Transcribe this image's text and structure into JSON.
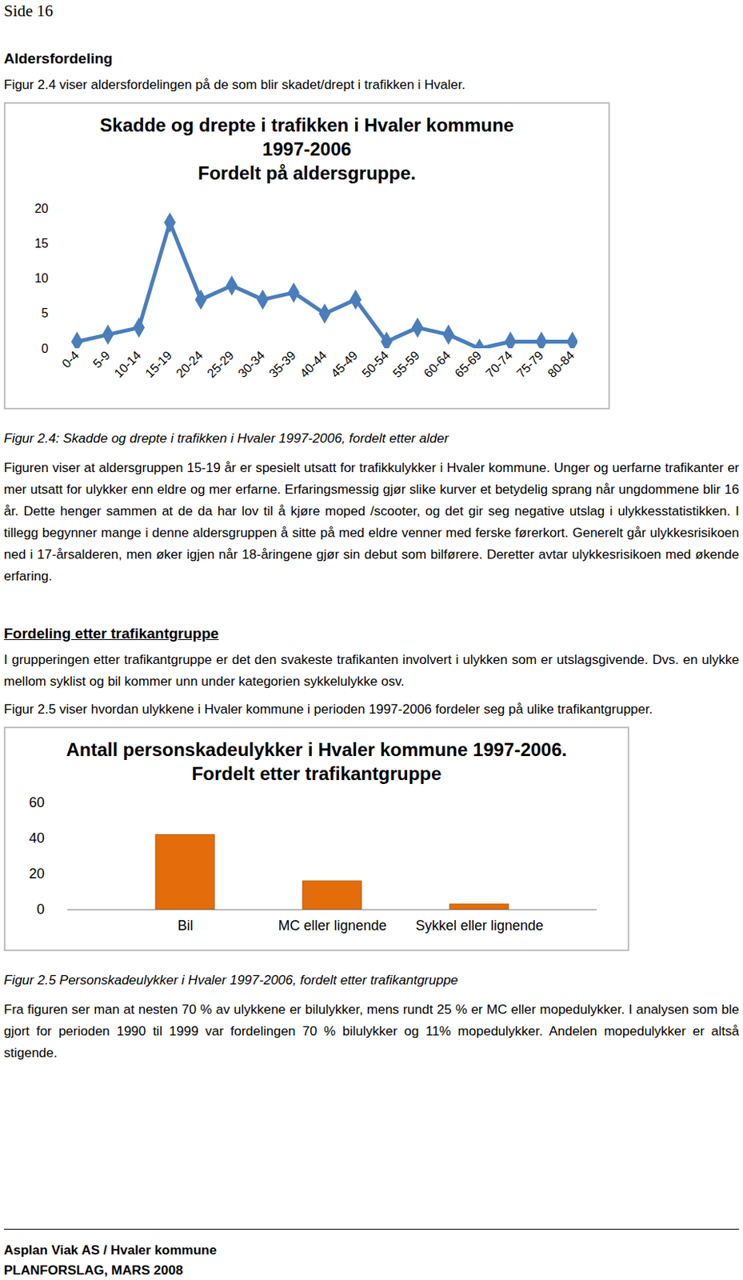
{
  "document": {
    "page_label": "Side 16",
    "sections": [
      {
        "heading": "Aldersfordeling",
        "intro": [
          "Figur 2.4 viser aldersfordelingen på de som blir skadet/drept i trafikken i Hvaler."
        ],
        "caption": "Figur 2.4: Skadde og drepte i trafikken i Hvaler 1997-2006, fordelt etter alder",
        "text": [
          "Figuren viser at aldersgruppen 15-19 år er spesielt utsatt for trafikkulykker i Hvaler kommune. Unger og uerfarne trafikanter er mer utsatt for ulykker enn eldre og mer erfarne. Erfaringsmessig gjør slike kurver et betydelig sprang når ungdommene blir 16 år. Dette henger sammen at de da har lov til å kjøre moped /scooter, og det gir seg negative utslag i ulykkesstatistikken. I tillegg begynner mange i denne aldersgruppen å sitte på med eldre venner med ferske førerkort. Generelt går ulykkesrisikoen ned i 17-årsalderen, men øker igjen når 18-åringene gjør sin debut som bilførere. Deretter avtar ulykkesrisikoen med økende erfaring."
        ]
      },
      {
        "heading": "Fordeling etter trafikantgruppe",
        "intro": [
          "I grupperingen etter trafikantgruppe er det den svakeste trafikanten involvert i ulykken som er utslagsgivende. Dvs. en ulykke mellom syklist og bil kommer unn under kategorien sykkelulykke osv.",
          "Figur 2.5 viser hvordan ulykkene i Hvaler kommune i perioden 1997-2006 fordeler seg på ulike trafikantgrupper."
        ],
        "caption": "Figur 2.5 Personskadeulykker i Hvaler 1997-2006, fordelt etter trafikantgruppe",
        "text": [
          "Fra figuren ser man at nesten 70 % av ulykkene er bilulykker, mens rundt 25 % er MC eller mopedulykker. I analysen som ble gjort for perioden 1990 til 1999 var fordelingen 70 % bilulykker og 11% mopedulykker.  Andelen mopedulykker er altså stigende."
        ]
      }
    ],
    "footer": [
      "Asplan Viak AS / Hvaler kommune",
      "PLANFORSLAG, MARS 2008"
    ]
  },
  "chart_data": [
    {
      "type": "line",
      "title": "Skadde og drepte i trafikken i Hvaler kommune 1997-2006",
      "subtitle": "Fordelt på aldersgruppe.",
      "categories": [
        "0-4",
        "5-9",
        "10-14",
        "15-19",
        "20-24",
        "25-29",
        "30-34",
        "35-39",
        "40-44",
        "45-49",
        "50-54",
        "55-59",
        "60-64",
        "65-69",
        "70-74",
        "75-79",
        "80-84"
      ],
      "values": [
        1,
        2,
        3,
        18,
        7,
        9,
        7,
        8,
        5,
        7,
        1,
        3,
        2,
        0,
        1,
        1,
        1
      ],
      "color": "#4a7ebb",
      "marker": "diamond",
      "line_style": "solid",
      "ylim": [
        0,
        20
      ],
      "yticks": [
        0,
        5,
        10,
        15,
        20
      ],
      "grid": false
    },
    {
      "type": "bar",
      "title": "Antall personskadeulykker i Hvaler kommune 1997-2006.",
      "subtitle": "Fordelt etter trafikantgruppe",
      "categories": [
        "Bil",
        "MC eller lignende",
        "Sykkel eller lignende"
      ],
      "values": [
        42,
        16,
        3
      ],
      "color": "#e46c0a",
      "ylim": [
        0,
        60
      ],
      "yticks": [
        0,
        20,
        40,
        60
      ],
      "grid": false
    }
  ]
}
